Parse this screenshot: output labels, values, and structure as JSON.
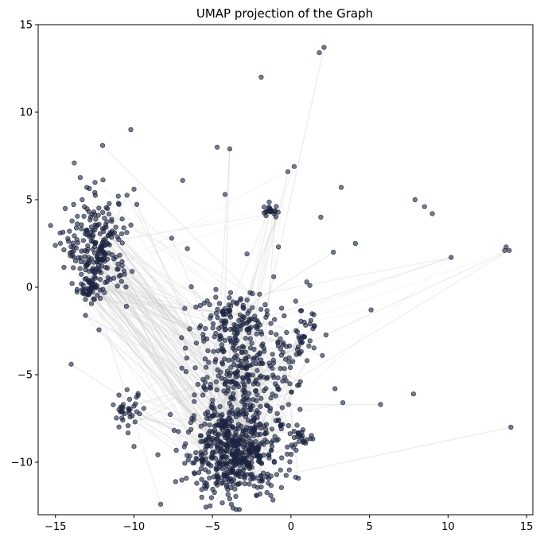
{
  "chart_data": {
    "type": "scatter",
    "title": "UMAP projection of the Graph",
    "xlabel": "",
    "ylabel": "",
    "xlim": [
      -16.1,
      15.4
    ],
    "ylim": [
      -13.0,
      15.0
    ],
    "x_ticks": [
      -15,
      -10,
      -5,
      0,
      5,
      10,
      15
    ],
    "y_ticks": [
      -10,
      -5,
      0,
      5,
      10,
      15
    ],
    "grid": false,
    "point_color": "#1b2340",
    "edge_color": "#c8c8c8",
    "clusters": [
      {
        "name": "main-lower",
        "cx": -3.6,
        "cy": -9.4,
        "sx": 1.5,
        "sy": 1.3,
        "n": 520
      },
      {
        "name": "main-middle",
        "cx": -3.0,
        "cy": -5.2,
        "sx": 1.7,
        "sy": 1.5,
        "n": 260
      },
      {
        "name": "main-upper",
        "cx": -3.4,
        "cy": -1.9,
        "sx": 1.4,
        "sy": 0.9,
        "n": 120
      },
      {
        "name": "left-top",
        "cx": -12.3,
        "cy": 2.3,
        "sx": 1.0,
        "sy": 1.4,
        "n": 230
      },
      {
        "name": "left-bottom-dense",
        "cx": -12.8,
        "cy": -0.1,
        "sx": 0.3,
        "sy": 0.3,
        "n": 40
      },
      {
        "name": "left-mid",
        "cx": -10.4,
        "cy": -7.1,
        "sx": 0.5,
        "sy": 0.5,
        "n": 35
      },
      {
        "name": "right-strip",
        "cx": 0.8,
        "cy": -3.0,
        "sx": 0.4,
        "sy": 0.8,
        "n": 35
      },
      {
        "name": "right-lower",
        "cx": 0.7,
        "cy": -8.5,
        "sx": 0.3,
        "sy": 0.2,
        "n": 20
      },
      {
        "name": "center-upper",
        "cx": -1.3,
        "cy": 4.3,
        "sx": 0.3,
        "sy": 0.2,
        "n": 20
      }
    ],
    "outliers": [
      [
        2.1,
        13.7
      ],
      [
        1.8,
        13.4
      ],
      [
        -1.9,
        12.0
      ],
      [
        -10.2,
        9.0
      ],
      [
        -4.7,
        8.0
      ],
      [
        -3.9,
        7.9
      ],
      [
        -13.8,
        7.1
      ],
      [
        -12.0,
        8.1
      ],
      [
        -0.2,
        6.6
      ],
      [
        0.2,
        6.9
      ],
      [
        -6.9,
        6.1
      ],
      [
        -4.2,
        5.3
      ],
      [
        3.2,
        5.7
      ],
      [
        1.9,
        4.0
      ],
      [
        7.9,
        5.0
      ],
      [
        8.5,
        4.6
      ],
      [
        9.0,
        4.2
      ],
      [
        13.7,
        2.3
      ],
      [
        13.6,
        2.1
      ],
      [
        13.9,
        2.1
      ],
      [
        10.2,
        1.7
      ],
      [
        2.7,
        2.0
      ],
      [
        4.1,
        2.5
      ],
      [
        -6.6,
        2.2
      ],
      [
        -2.8,
        1.9
      ],
      [
        -0.8,
        2.3
      ],
      [
        1.2,
        0.1
      ],
      [
        5.1,
        -1.3
      ],
      [
        2.8,
        -5.8
      ],
      [
        3.3,
        -6.6
      ],
      [
        5.7,
        -6.7
      ],
      [
        7.8,
        -6.1
      ],
      [
        14.0,
        -8.0
      ],
      [
        -14.0,
        -4.4
      ],
      [
        -14.7,
        3.1
      ],
      [
        -10.0,
        -9.1
      ],
      [
        -8.3,
        -12.4
      ],
      [
        -3.8,
        -12.4
      ],
      [
        -6.0,
        -11.2
      ],
      [
        -2.2,
        -11.9
      ],
      [
        -10.0,
        5.6
      ],
      [
        -11.0,
        5.2
      ],
      [
        -7.6,
        2.8
      ],
      [
        -13.0,
        5.7
      ],
      [
        -0.6,
        -1.2
      ],
      [
        0.3,
        -0.8
      ],
      [
        1.0,
        0.3
      ],
      [
        -1.1,
        0.6
      ],
      [
        -2.0,
        -0.4
      ],
      [
        2.0,
        -3.9
      ]
    ],
    "edge_count": 420
  }
}
